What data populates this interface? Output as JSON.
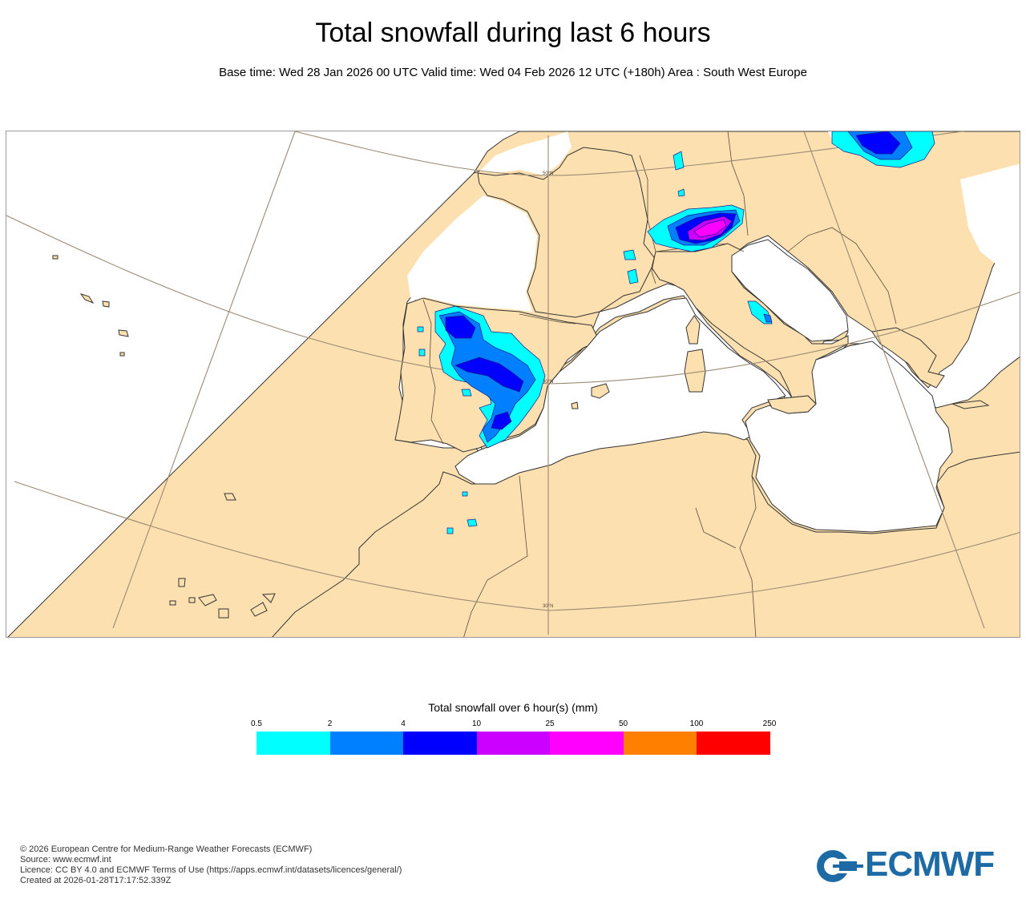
{
  "header": {
    "title": "Total snowfall during last 6 hours",
    "subtitle": "Base time: Wed 28 Jan 2026 00 UTC Valid time: Wed 04 Feb 2026 12 UTC (+180h) Area : South West Europe"
  },
  "map": {
    "lat_labels": [
      "50°N",
      "40°N",
      "30°N"
    ],
    "colors": {
      "land": "#fde0b0",
      "sea": "#ffffff",
      "graticule": "#9b8a74",
      "coast": "#333333",
      "border": "#5a4a3a"
    }
  },
  "legend": {
    "title": "Total snowfall over 6 hour(s) (mm)",
    "ticks": [
      "0.5",
      "2",
      "4",
      "10",
      "25",
      "50",
      "100",
      "250"
    ],
    "colors": [
      "#00ffff",
      "#0080ff",
      "#0000ff",
      "#cc00ff",
      "#ff00ff",
      "#ff8000",
      "#ff0000"
    ]
  },
  "footer": {
    "lines": [
      "© 2026 European Centre for Medium-Range Weather Forecasts (ECMWF)",
      "Source: www.ecmwf.int",
      "Licence: CC BY 4.0 and ECMWF Terms of Use (https://apps.ecmwf.int/datasets/licences/general/)",
      "Created at 2026-01-28T17:17:52.339Z"
    ]
  },
  "logo": {
    "text": "ECMWF",
    "color": "#1e6aa5"
  }
}
